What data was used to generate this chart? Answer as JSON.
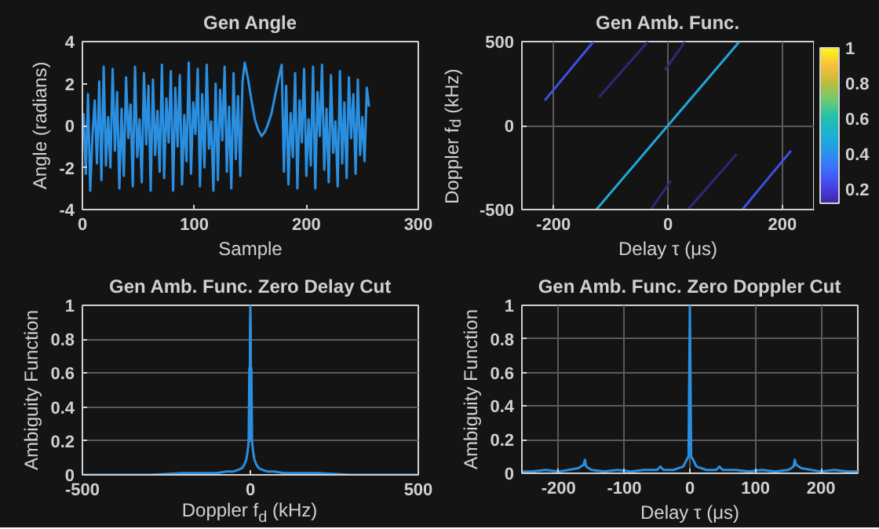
{
  "chart_data": [
    {
      "type": "line",
      "title": "Gen Angle",
      "xlabel": "Sample",
      "ylabel": "Angle (radians)",
      "xlim": [
        0,
        300
      ],
      "xticks": [
        0,
        100,
        200,
        300
      ],
      "ylim": [
        -4,
        4
      ],
      "yticks": [
        -4,
        -2,
        0,
        2,
        4
      ],
      "series": [
        {
          "color": "#2a8fe0",
          "x": [
            1,
            3,
            5,
            7,
            9,
            11,
            13,
            15,
            17,
            19,
            21,
            23,
            25,
            27,
            29,
            31,
            33,
            35,
            37,
            39,
            41,
            43,
            45,
            47,
            49,
            51,
            53,
            55,
            57,
            59,
            61,
            63,
            65,
            67,
            69,
            71,
            73,
            75,
            77,
            79,
            81,
            83,
            85,
            87,
            89,
            91,
            93,
            95,
            97,
            99,
            101,
            103,
            105,
            107,
            109,
            111,
            113,
            115,
            117,
            119,
            121,
            123,
            125,
            127,
            129,
            131,
            133,
            135,
            137,
            139,
            141,
            143,
            145,
            148,
            151,
            154,
            157,
            160,
            163,
            166,
            169,
            172,
            175,
            178,
            180,
            182,
            184,
            186,
            188,
            190,
            192,
            194,
            196,
            198,
            200,
            202,
            204,
            206,
            208,
            210,
            212,
            214,
            216,
            218,
            220,
            222,
            224,
            226,
            228,
            230,
            232,
            234,
            236,
            238,
            240,
            242,
            244,
            246,
            248,
            250,
            252,
            254,
            256
          ],
          "values": [
            0.6,
            -2.3,
            1.5,
            -3.1,
            -0.5,
            1.2,
            -1.8,
            2.1,
            -2.6,
            2.8,
            -1.9,
            0.4,
            -2.0,
            2.7,
            -1.2,
            1.6,
            -3.0,
            0.8,
            -2.4,
            2.3,
            -0.6,
            1.0,
            -2.9,
            2.8,
            -1.5,
            0.3,
            -2.7,
            2.5,
            -0.9,
            1.9,
            -3.1,
            2.2,
            -1.4,
            0.7,
            -2.2,
            2.9,
            -2.5,
            1.3,
            -0.8,
            2.6,
            -3.1,
            1.8,
            -1.0,
            2.4,
            -2.8,
            0.5,
            -1.7,
            3.0,
            -2.3,
            1.1,
            -0.4,
            2.7,
            -2.9,
            1.5,
            -2.0,
            2.9,
            -1.1,
            0.2,
            -3.1,
            2.0,
            -2.6,
            1.7,
            -0.7,
            2.8,
            -2.2,
            0.9,
            -3.0,
            2.5,
            -1.6,
            1.4,
            -2.4,
            2.1,
            3.0,
            2.2,
            1.2,
            0.3,
            -0.2,
            -0.5,
            -0.3,
            0.1,
            0.6,
            1.4,
            2.2,
            2.9,
            -2.2,
            1.9,
            -2.8,
            0.6,
            -1.5,
            2.5,
            -3.0,
            1.2,
            -0.8,
            2.7,
            -2.4,
            0.3,
            -1.9,
            2.8,
            -3.0,
            1.6,
            -0.5,
            2.9,
            -2.1,
            0.8,
            -2.7,
            2.4,
            -1.3,
            0.2,
            -2.9,
            2.6,
            -1.8,
            1.1,
            -2.5,
            2.3,
            -0.6,
            1.5,
            -2.3,
            2.2,
            -1.4,
            0.4,
            -1.7,
            1.8,
            0.9
          ]
        }
      ]
    },
    {
      "type": "line",
      "title": "Gen Amb. Func.",
      "xlabel": "Delay τ (μs)",
      "ylabel": "Doppler f$_{d}$ (kHz)",
      "xlim": [
        -255,
        255
      ],
      "xticks": [
        -200,
        0,
        200
      ],
      "ylim": [
        -500,
        500
      ],
      "yticks": [
        -500,
        0,
        500
      ],
      "grid": true,
      "clim": [
        0.12,
        1
      ],
      "cticks": [
        0.2,
        0.4,
        0.6,
        0.8,
        1
      ],
      "series": [
        {
          "color": "#22a6d8",
          "x": [
            -125,
            125
          ],
          "values": [
            -500,
            500
          ]
        },
        {
          "color": "#3f4fe6",
          "x": [
            -215,
            -130
          ],
          "values": [
            150,
            500
          ]
        },
        {
          "color": "#3f4fe6",
          "x": [
            130,
            215
          ],
          "values": [
            -500,
            -150
          ]
        },
        {
          "color": "#2c2a7a",
          "x": [
            -120,
            -35
          ],
          "values": [
            170,
            500
          ]
        },
        {
          "color": "#2c2a7a",
          "x": [
            35,
            120
          ],
          "values": [
            -500,
            -170
          ]
        },
        {
          "color": "#2c2a7a",
          "x": [
            -30,
            5
          ],
          "values": [
            -500,
            -330
          ]
        },
        {
          "color": "#2c2a7a",
          "x": [
            -5,
            30
          ],
          "values": [
            330,
            500
          ]
        }
      ]
    },
    {
      "type": "line",
      "title": "Gen Amb. Func. Zero Delay Cut",
      "xlabel": "Doppler f$_{d}$ (kHz)",
      "ylabel": "Ambiguity Function",
      "xlim": [
        -500,
        500
      ],
      "xticks": [
        -500,
        0,
        500
      ],
      "ylim": [
        0,
        1
      ],
      "yticks": [
        0,
        0.2,
        0.4,
        0.6,
        0.8,
        1
      ],
      "grid": "y",
      "series": [
        {
          "color": "#2a8fe0",
          "x": [
            -500,
            -400,
            -300,
            -200,
            -150,
            -100,
            -70,
            -50,
            -35,
            -25,
            -18,
            -12,
            -8,
            -5,
            -3,
            -2,
            -1,
            0,
            1,
            2,
            3,
            5,
            8,
            12,
            18,
            25,
            35,
            50,
            70,
            100,
            150,
            200,
            300,
            400,
            500
          ],
          "values": [
            0,
            0,
            0,
            0.01,
            0.01,
            0.01,
            0.02,
            0.02,
            0.03,
            0.04,
            0.06,
            0.09,
            0.14,
            0.2,
            0.63,
            0.2,
            0.87,
            1,
            0.87,
            0.2,
            0.63,
            0.2,
            0.14,
            0.09,
            0.06,
            0.04,
            0.03,
            0.02,
            0.02,
            0.01,
            0.01,
            0.01,
            0,
            0,
            0
          ]
        }
      ]
    },
    {
      "type": "line",
      "title": "Gen Amb. Func. Zero Doppler Cut",
      "xlabel": "Delay τ (μs)",
      "ylabel": "Ambiguity Function",
      "xlim": [
        -256,
        256
      ],
      "xticks": [
        -200,
        -100,
        0,
        100,
        200
      ],
      "ylim": [
        0,
        1
      ],
      "yticks": [
        0,
        0.2,
        0.4,
        0.6,
        0.8,
        1
      ],
      "grid": true,
      "series": [
        {
          "color": "#2a8fe0",
          "x": [
            -256,
            -240,
            -220,
            -200,
            -185,
            -170,
            -162,
            -160,
            -158,
            -150,
            -130,
            -110,
            -90,
            -70,
            -50,
            -45,
            -40,
            -25,
            -10,
            -5,
            -2,
            0,
            2,
            5,
            10,
            25,
            40,
            45,
            50,
            70,
            90,
            110,
            130,
            150,
            158,
            160,
            162,
            170,
            185,
            200,
            220,
            240,
            256
          ],
          "values": [
            0.01,
            0.01,
            0.02,
            0.01,
            0.02,
            0.03,
            0.05,
            0.08,
            0.04,
            0.02,
            0.01,
            0.02,
            0.01,
            0.02,
            0.02,
            0.04,
            0.02,
            0.02,
            0.04,
            0.08,
            0.1,
            1,
            0.1,
            0.08,
            0.04,
            0.02,
            0.02,
            0.04,
            0.02,
            0.02,
            0.01,
            0.02,
            0.01,
            0.02,
            0.04,
            0.08,
            0.05,
            0.03,
            0.02,
            0.01,
            0.02,
            0.01,
            0.01
          ]
        }
      ]
    }
  ]
}
